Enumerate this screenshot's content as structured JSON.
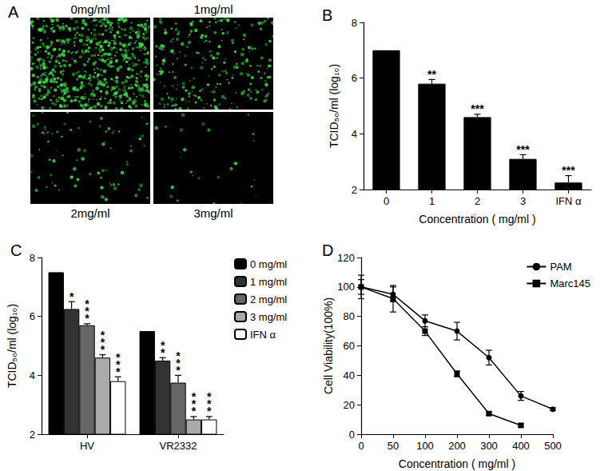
{
  "chart_data": [
    {
      "panel": "B",
      "type": "bar",
      "categories": [
        "0",
        "1",
        "2",
        "3",
        "IFN α"
      ],
      "values": [
        7,
        5.8,
        4.6,
        3.1,
        2.25
      ],
      "errors": [
        0,
        0.15,
        0.1,
        0.15,
        0.25
      ],
      "significance": [
        null,
        "**",
        "***",
        "***",
        "***"
      ],
      "color": "#000000",
      "x_label": "Concentration ( mg/ml )",
      "y_label": "TCID₅₀/ml (log₁₀)",
      "ylim": [
        2,
        8
      ],
      "yticks": [
        2,
        4,
        6,
        8
      ],
      "grid": false
    },
    {
      "panel": "C",
      "type": "bar",
      "categories": [
        "HV",
        "VR2332"
      ],
      "series": [
        {
          "name": "0 mg/ml",
          "color": "#000000",
          "values": [
            7.5,
            5.5
          ],
          "errors": [
            0,
            0
          ],
          "significance": [
            null,
            null
          ]
        },
        {
          "name": "1 mg/ml",
          "color": "#333333",
          "values": [
            6.25,
            4.5
          ],
          "errors": [
            0.25,
            0.1
          ],
          "significance": [
            "*",
            "**"
          ]
        },
        {
          "name": "2 mg/ml",
          "color": "#666666",
          "values": [
            5.7,
            3.75
          ],
          "errors": [
            0.05,
            0.25
          ],
          "significance": [
            "***",
            "***"
          ]
        },
        {
          "name": "3 mg/ml",
          "color": "#aaaaaa",
          "values": [
            4.6,
            2.5
          ],
          "errors": [
            0.1,
            0.1
          ],
          "significance": [
            "***",
            "***"
          ]
        },
        {
          "name": "IFN α",
          "color": "#ffffff",
          "values": [
            3.8,
            2.5
          ],
          "errors": [
            0.15,
            0.1
          ],
          "significance": [
            "***",
            "***"
          ]
        }
      ],
      "y_label": "TCID₅₀/ml (log₁₀)",
      "ylim": [
        2,
        8
      ],
      "yticks": [
        2,
        4,
        6,
        8
      ],
      "legend": "right",
      "grid": false
    },
    {
      "panel": "D",
      "type": "line",
      "categories": [
        "0",
        "50",
        "100",
        "200",
        "300",
        "400",
        "500"
      ],
      "series": [
        {
          "name": "PAM",
          "color": "#000000",
          "marker": "circle",
          "values": [
            100,
            95,
            77,
            70,
            52,
            26,
            17
          ],
          "errors": [
            8,
            5,
            4,
            6,
            5,
            3,
            1
          ]
        },
        {
          "name": "Marc145",
          "color": "#000000",
          "marker": "square",
          "values": [
            100,
            92,
            70,
            41,
            14,
            6,
            null
          ],
          "errors": [
            5,
            9,
            3,
            2,
            1,
            1,
            null
          ]
        }
      ],
      "x_label": "Concentration ( mg/ml )",
      "y_label": "Cell Viability(100%)",
      "ylim": [
        0,
        120
      ],
      "yticks": [
        0,
        20,
        40,
        60,
        80,
        100,
        120
      ],
      "legend": "top-right",
      "grid": false
    }
  ],
  "image_panel": {
    "panel": "A",
    "labels": [
      "0mg/ml",
      "1mg/ml",
      "2mg/ml",
      "3mg/ml"
    ]
  }
}
